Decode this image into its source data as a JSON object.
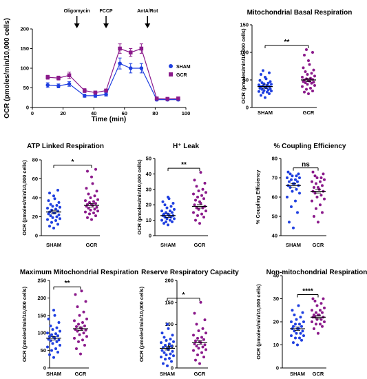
{
  "colors": {
    "sham": "#1f3fe0",
    "gcr": "#8b1a8b",
    "axis": "#000000"
  },
  "chart_data": [
    {
      "id": "timecourse",
      "type": "line",
      "title": "",
      "xlabel": "Time (min)",
      "ylabel": "OCR (pmoles/min/10,000 cells)",
      "xlim": [
        0,
        100
      ],
      "ylim": [
        0,
        200
      ],
      "xticks": [
        "0",
        "20",
        "40",
        "60",
        "80",
        "100"
      ],
      "yticks": [
        "0",
        "50",
        "100",
        "150",
        "200"
      ],
      "annotations": [
        {
          "label": "Oligomycin",
          "x": 29
        },
        {
          "label": "FCCP",
          "x": 48
        },
        {
          "label": "AntA/Rot",
          "x": 75
        }
      ],
      "legend": {
        "position": "right",
        "entries": [
          "SHAM",
          "GCR"
        ]
      },
      "series": [
        {
          "name": "SHAM",
          "x": [
            10,
            17,
            24,
            34,
            41,
            48,
            57,
            64,
            71,
            81,
            88,
            95
          ],
          "y": [
            57,
            55,
            60,
            30,
            30,
            33,
            112,
            100,
            100,
            20,
            20,
            20
          ],
          "err": [
            6,
            5,
            6,
            4,
            4,
            4,
            14,
            12,
            12,
            3,
            3,
            3
          ]
        },
        {
          "name": "GCR",
          "x": [
            10,
            17,
            24,
            34,
            41,
            48,
            57,
            64,
            71,
            81,
            88,
            95
          ],
          "y": [
            77,
            75,
            82,
            43,
            38,
            43,
            150,
            140,
            150,
            23,
            22,
            23
          ],
          "err": [
            5,
            5,
            8,
            5,
            4,
            4,
            12,
            10,
            12,
            3,
            3,
            3
          ]
        }
      ]
    },
    {
      "id": "basal",
      "type": "scatter",
      "title": "Mitochondrial Basal Respiration",
      "ylabel": "OCR (pmoles/min/10,000 cells)",
      "ylim": [
        0,
        150
      ],
      "yticks": [
        "0",
        "50",
        "100",
        "150"
      ],
      "categories": [
        "SHAM",
        "GCR"
      ],
      "significance": "**",
      "means": [
        38,
        50
      ],
      "series": [
        {
          "name": "SHAM",
          "values": [
            18,
            22,
            25,
            27,
            28,
            29,
            30,
            31,
            32,
            33,
            34,
            35,
            36,
            37,
            38,
            38,
            39,
            40,
            41,
            42,
            43,
            44,
            45,
            47,
            49,
            52,
            55,
            60,
            63,
            67
          ]
        },
        {
          "name": "GCR",
          "values": [
            25,
            28,
            30,
            33,
            35,
            38,
            40,
            42,
            44,
            45,
            46,
            47,
            48,
            49,
            50,
            51,
            52,
            53,
            55,
            57,
            60,
            62,
            65,
            68,
            72,
            78,
            85,
            95,
            100,
            105
          ]
        }
      ]
    },
    {
      "id": "atp",
      "type": "scatter",
      "title": "ATP Linked Respiration",
      "ylabel": "OCR (pmoles/min/10,000 cells)",
      "ylim": [
        0,
        80
      ],
      "yticks": [
        "0",
        "20",
        "40",
        "60",
        "80"
      ],
      "categories": [
        "SHAM",
        "GCR"
      ],
      "significance": "*",
      "means": [
        25,
        32
      ],
      "series": [
        {
          "name": "SHAM",
          "values": [
            8,
            10,
            12,
            14,
            16,
            17,
            18,
            19,
            20,
            21,
            22,
            23,
            24,
            24,
            25,
            26,
            27,
            28,
            29,
            30,
            31,
            32,
            33,
            35,
            37,
            39,
            42,
            45,
            48
          ]
        },
        {
          "name": "GCR",
          "values": [
            17,
            19,
            21,
            23,
            24,
            25,
            26,
            27,
            28,
            29,
            30,
            31,
            32,
            33,
            33,
            34,
            35,
            36,
            37,
            38,
            40,
            42,
            44,
            47,
            50,
            55,
            62,
            68,
            70
          ]
        }
      ]
    },
    {
      "id": "leak",
      "type": "scatter",
      "title": "H⁺ Leak",
      "ylabel": "OCR (pmoles/min/10,000 cells)",
      "ylim": [
        0,
        50
      ],
      "yticks": [
        "0",
        "10",
        "20",
        "30",
        "40",
        "50"
      ],
      "categories": [
        "SHAM",
        "GCR"
      ],
      "significance": "**",
      "means": [
        13,
        19
      ],
      "series": [
        {
          "name": "SHAM",
          "values": [
            7,
            8,
            9,
            9,
            10,
            10,
            11,
            11,
            12,
            12,
            13,
            13,
            13,
            14,
            14,
            15,
            15,
            16,
            16,
            17,
            18,
            19,
            20,
            21,
            22,
            24,
            25
          ]
        },
        {
          "name": "GCR",
          "values": [
            8,
            10,
            12,
            13,
            14,
            15,
            16,
            17,
            18,
            18,
            19,
            20,
            21,
            22,
            23,
            24,
            25,
            26,
            27,
            28,
            29,
            30,
            32,
            34,
            36,
            41
          ]
        }
      ]
    },
    {
      "id": "coupling",
      "type": "scatter",
      "title": "% Coupling Efficiency",
      "ylabel": "% Coupling Efficiency",
      "ylim": [
        40,
        80
      ],
      "yticks": [
        "40",
        "50",
        "60",
        "70",
        "80"
      ],
      "categories": [
        "SHAM",
        "GCR"
      ],
      "significance": "ns",
      "means": [
        66,
        63
      ],
      "series": [
        {
          "name": "SHAM",
          "values": [
            44,
            47,
            52,
            55,
            58,
            60,
            62,
            63,
            64,
            65,
            66,
            66,
            67,
            67,
            68,
            68,
            69,
            69,
            70,
            70,
            71,
            71,
            72,
            72,
            73
          ]
        },
        {
          "name": "GCR",
          "values": [
            47,
            50,
            52,
            54,
            56,
            58,
            59,
            60,
            61,
            62,
            63,
            63,
            64,
            65,
            65,
            66,
            67,
            68,
            68,
            69,
            70,
            70,
            71,
            72,
            73
          ]
        }
      ]
    },
    {
      "id": "maximum",
      "type": "scatter",
      "title": "Maximum Mitochondrial Respiration",
      "ylabel": "OCR (pmoles/min/10,000 cells)",
      "ylim": [
        0,
        250
      ],
      "yticks": [
        "0",
        "50",
        "100",
        "150",
        "200",
        "250"
      ],
      "categories": [
        "SHAM",
        "GCR"
      ],
      "significance": "**",
      "means": [
        85,
        112
      ],
      "series": [
        {
          "name": "SHAM",
          "values": [
            30,
            38,
            45,
            50,
            55,
            60,
            65,
            70,
            75,
            78,
            80,
            82,
            85,
            88,
            90,
            92,
            95,
            98,
            100,
            105,
            110,
            115,
            120,
            130,
            140,
            150,
            165
          ]
        },
        {
          "name": "GCR",
          "values": [
            40,
            55,
            65,
            75,
            80,
            85,
            90,
            95,
            100,
            105,
            108,
            110,
            112,
            115,
            118,
            120,
            125,
            130,
            135,
            140,
            150,
            160,
            175,
            190,
            210,
            220
          ]
        }
      ]
    },
    {
      "id": "reserve",
      "type": "scatter",
      "title": "Reserve Respiratory Capacity",
      "ylabel": "OCR (pmoles/min/10,000 cells)",
      "ylim": [
        0,
        200
      ],
      "yticks": [
        "0",
        "50",
        "100",
        "150",
        "200"
      ],
      "categories": [
        "SHAM",
        "GCR"
      ],
      "significance": "*",
      "means": [
        45,
        58
      ],
      "series": [
        {
          "name": "SHAM",
          "values": [
            5,
            10,
            15,
            20,
            22,
            25,
            28,
            30,
            32,
            35,
            38,
            40,
            42,
            45,
            47,
            50,
            52,
            55,
            58,
            60,
            63,
            66,
            70,
            75,
            80,
            90,
            100
          ]
        },
        {
          "name": "GCR",
          "values": [
            10,
            18,
            25,
            30,
            35,
            40,
            42,
            45,
            48,
            50,
            53,
            55,
            58,
            60,
            62,
            65,
            68,
            70,
            75,
            80,
            85,
            90,
            100,
            110,
            125,
            150
          ]
        }
      ]
    },
    {
      "id": "nonmito",
      "type": "scatter",
      "title": "Non-mitochondrial Respiration",
      "ylabel": "OCR (pmoles/min/10,000 cells)",
      "ylim": [
        0,
        40
      ],
      "yticks": [
        "0",
        "10",
        "20",
        "30",
        "40"
      ],
      "categories": [
        "SHAM",
        "GCR"
      ],
      "significance": "****",
      "means": [
        17,
        22
      ],
      "series": [
        {
          "name": "SHAM",
          "values": [
            10,
            11,
            12,
            13,
            13,
            14,
            14,
            15,
            15,
            16,
            16,
            17,
            17,
            17,
            18,
            18,
            19,
            19,
            20,
            20,
            21,
            22,
            23,
            24,
            25,
            27
          ]
        },
        {
          "name": "GCR",
          "values": [
            15,
            17,
            18,
            19,
            19,
            20,
            20,
            21,
            21,
            22,
            22,
            22,
            23,
            23,
            23,
            24,
            24,
            25,
            25,
            26,
            27,
            28,
            29,
            30,
            30
          ]
        }
      ]
    }
  ]
}
